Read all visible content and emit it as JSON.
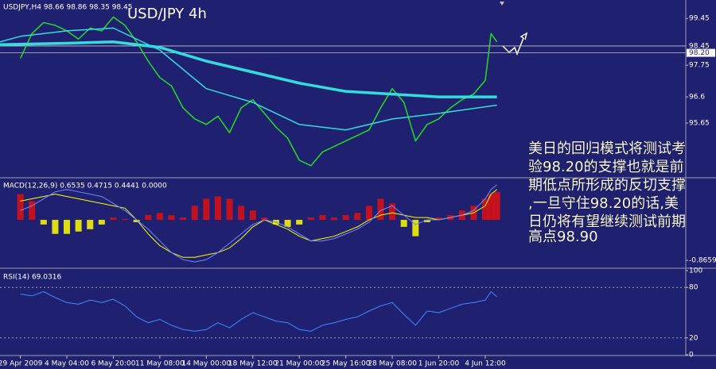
{
  "chart_data": [
    {
      "type": "line",
      "title": "USD/JPY 4h",
      "label": "USDJPY,H4  98.66 98.86 98.35 98.45",
      "xlim": [
        -7,
        229
      ],
      "ylim": [
        93.72,
        100.12
      ],
      "yticks": [
        99.45,
        97.75,
        96.6,
        95.65
      ],
      "price_levels": [
        {
          "value": 98.45,
          "label": "98.45",
          "highlight": false
        },
        {
          "value": 98.2,
          "label": "98.20",
          "highlight": true
        }
      ],
      "series": [
        {
          "color": "#22dd22",
          "width": 1.5,
          "x": [
            0,
            4,
            8,
            12,
            16,
            20,
            24,
            28,
            32,
            36,
            40,
            44,
            48,
            52,
            56,
            60,
            64,
            68,
            72,
            76,
            80,
            84,
            88,
            92,
            96,
            100,
            104,
            108,
            112,
            116,
            120,
            124,
            128,
            132,
            136,
            140,
            144,
            148,
            152,
            156,
            160,
            162,
            164
          ],
          "values": [
            98.0,
            98.9,
            99.3,
            99.2,
            99.0,
            98.7,
            99.1,
            99.0,
            99.5,
            99.2,
            98.6,
            97.9,
            97.3,
            97.0,
            96.2,
            95.8,
            95.6,
            95.9,
            95.3,
            96.2,
            96.5,
            96.0,
            95.5,
            95.1,
            94.3,
            94.1,
            94.6,
            94.8,
            95.0,
            95.2,
            95.4,
            96.2,
            96.9,
            96.4,
            95.0,
            95.6,
            95.8,
            96.2,
            96.5,
            96.7,
            97.2,
            98.9,
            98.6
          ]
        },
        {
          "color": "#33dddd",
          "width": 1.5,
          "x": [
            -7,
            0,
            16,
            32,
            48,
            64,
            80,
            96,
            112,
            128,
            144,
            164
          ],
          "values": [
            98.6,
            98.8,
            99.0,
            99.1,
            98.3,
            96.9,
            96.4,
            95.6,
            95.4,
            95.8,
            96.0,
            96.3
          ]
        },
        {
          "color": "#33dddd",
          "width": 3.5,
          "x": [
            -7,
            16,
            32,
            48,
            64,
            80,
            96,
            112,
            128,
            144,
            164
          ],
          "values": [
            98.5,
            98.55,
            98.6,
            98.4,
            97.9,
            97.5,
            97.1,
            96.8,
            96.7,
            96.6,
            96.6
          ]
        }
      ]
    },
    {
      "type": "bar",
      "label": "MACD(12,26,9) 0.6535 0.4715 0.4441 0.0000",
      "xlim": [
        -7,
        229
      ],
      "ylim": [
        -1.0,
        0.866
      ],
      "yticks": [
        {
          "value": -0.8659,
          "label": "-0.8659"
        }
      ],
      "series": [
        {
          "kind": "bar",
          "color": "#e01010",
          "negative_color": "#ffff00",
          "x": [
            0,
            4,
            8,
            12,
            16,
            20,
            24,
            28,
            32,
            36,
            40,
            44,
            48,
            52,
            56,
            60,
            64,
            68,
            72,
            76,
            80,
            84,
            88,
            92,
            96,
            100,
            104,
            108,
            112,
            116,
            120,
            124,
            128,
            132,
            136,
            140,
            144,
            148,
            152,
            156,
            160,
            162,
            164
          ],
          "values": [
            0.55,
            0.4,
            -0.1,
            -0.3,
            -0.3,
            -0.25,
            -0.2,
            -0.1,
            0.05,
            0.02,
            -0.05,
            0.1,
            0.15,
            0.1,
            0.05,
            0.3,
            0.45,
            0.5,
            0.45,
            0.3,
            0.2,
            0.05,
            -0.1,
            -0.15,
            -0.1,
            0.05,
            0.1,
            0.05,
            0.1,
            0.15,
            0.3,
            0.45,
            0.35,
            -0.15,
            -0.35,
            -0.05,
            0.05,
            0.1,
            0.2,
            0.3,
            0.45,
            0.55,
            0.6
          ]
        },
        {
          "kind": "line",
          "color": "#ffff00",
          "x": [
            0,
            4,
            8,
            12,
            16,
            20,
            24,
            28,
            32,
            36,
            40,
            44,
            48,
            52,
            56,
            60,
            64,
            68,
            72,
            76,
            80,
            84,
            88,
            92,
            96,
            100,
            104,
            108,
            112,
            116,
            120,
            124,
            128,
            132,
            136,
            140,
            144,
            148,
            152,
            156,
            160,
            162,
            164
          ],
          "values": [
            0.4,
            0.45,
            0.5,
            0.55,
            0.5,
            0.45,
            0.4,
            0.35,
            0.3,
            0.25,
            0.0,
            -0.3,
            -0.55,
            -0.7,
            -0.8,
            -0.8,
            -0.75,
            -0.7,
            -0.6,
            -0.4,
            -0.15,
            0.0,
            -0.1,
            -0.2,
            -0.35,
            -0.45,
            -0.4,
            -0.35,
            -0.25,
            -0.15,
            0.0,
            0.1,
            0.15,
            0.1,
            0.05,
            0.05,
            0.0,
            0.05,
            0.1,
            0.15,
            0.3,
            0.55,
            0.65
          ]
        },
        {
          "kind": "line",
          "color": "#6b8cff",
          "x": [
            0,
            4,
            8,
            12,
            16,
            20,
            24,
            28,
            32,
            36,
            40,
            44,
            48,
            52,
            56,
            60,
            64,
            68,
            72,
            76,
            80,
            84,
            88,
            92,
            96,
            100,
            104,
            108,
            112,
            116,
            120,
            124,
            128,
            132,
            136,
            140,
            144,
            148,
            152,
            156,
            160,
            162,
            164
          ],
          "values": [
            0.2,
            0.3,
            0.45,
            0.6,
            0.65,
            0.6,
            0.55,
            0.5,
            0.35,
            0.2,
            0.0,
            -0.2,
            -0.45,
            -0.7,
            -0.85,
            -0.9,
            -0.85,
            -0.7,
            -0.5,
            -0.3,
            -0.1,
            0.0,
            -0.05,
            -0.15,
            -0.3,
            -0.45,
            -0.45,
            -0.4,
            -0.3,
            -0.2,
            -0.05,
            0.2,
            0.3,
            0.1,
            -0.1,
            0.0,
            0.0,
            0.05,
            0.1,
            0.2,
            0.45,
            0.65,
            0.75
          ]
        }
      ]
    },
    {
      "type": "line",
      "label": "RSI(14) 69.0316",
      "xlim": [
        -7,
        229
      ],
      "ylim": [
        0,
        100
      ],
      "yticks": [
        100,
        80,
        20,
        0
      ],
      "levels": [
        80,
        20
      ],
      "xticks": [
        {
          "value": 0,
          "label": "29 Apr 2009"
        },
        {
          "value": 16,
          "label": "4 May 04:00"
        },
        {
          "value": 32,
          "label": "6 May 20:00"
        },
        {
          "value": 48,
          "label": "11 May 08:00"
        },
        {
          "value": 64,
          "label": "14 May 00:00"
        },
        {
          "value": 80,
          "label": "18 May 12:00"
        },
        {
          "value": 96,
          "label": "21 May 00:00"
        },
        {
          "value": 112,
          "label": "25 May 16:00"
        },
        {
          "value": 128,
          "label": "28 May 08:00"
        },
        {
          "value": 144,
          "label": "1 Jun 20:00"
        },
        {
          "value": 160,
          "label": "4 Jun 12:00"
        }
      ],
      "series": [
        {
          "color": "#3c8cff",
          "width": 1,
          "x": [
            0,
            4,
            8,
            12,
            16,
            20,
            24,
            28,
            32,
            36,
            40,
            44,
            48,
            52,
            56,
            60,
            64,
            68,
            72,
            76,
            80,
            84,
            88,
            92,
            96,
            100,
            104,
            108,
            112,
            116,
            120,
            124,
            128,
            132,
            136,
            140,
            144,
            148,
            152,
            156,
            160,
            162,
            164
          ],
          "values": [
            72,
            70,
            75,
            68,
            62,
            60,
            65,
            62,
            66,
            58,
            45,
            38,
            42,
            35,
            30,
            28,
            30,
            38,
            32,
            42,
            50,
            45,
            40,
            38,
            30,
            28,
            35,
            38,
            42,
            45,
            52,
            58,
            62,
            48,
            35,
            52,
            50,
            55,
            60,
            62,
            65,
            75,
            69
          ]
        }
      ]
    }
  ],
  "annotation": {
    "lines": [
      "美日的回归模式将测试考",
      "验98.20的支撑也就是前",
      "期低点所形成的反切支撑",
      ",一旦守住98.20的话,美",
      "日仍将有望继续测试前期",
      "高点98.90"
    ]
  }
}
